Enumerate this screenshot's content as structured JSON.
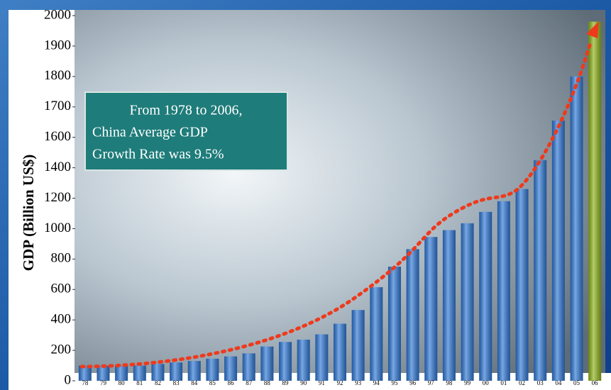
{
  "chart_data": {
    "type": "bar",
    "y_label": "GDP (Billion US$)",
    "annotation": [
      "From 1978 to 2006,",
      "China Average GDP",
      "Growth Rate was 9.5%"
    ],
    "categories": [
      "78",
      "79",
      "80",
      "81",
      "82",
      "83",
      "84",
      "85",
      "86",
      "87",
      "88",
      "89",
      "90",
      "91",
      "92",
      "93",
      "94",
      "95",
      "96",
      "97",
      "98",
      "99",
      "00",
      "01",
      "02",
      "03",
      "04",
      "05",
      "06"
    ],
    "values": [
      100,
      100,
      100,
      100,
      110,
      120,
      130,
      145,
      160,
      180,
      225,
      255,
      270,
      305,
      375,
      465,
      615,
      750,
      865,
      945,
      990,
      1035,
      1110,
      1180,
      1260,
      1450,
      1655,
      1800,
      1980
    ],
    "bar_colors": [
      "#2f78d6",
      "#2f78d6",
      "#2f78d6",
      "#2f78d6",
      "#2f78d6",
      "#2f78d6",
      "#2f78d6",
      "#2f78d6",
      "#2f78d6",
      "#2f78d6",
      "#2f78d6",
      "#2f78d6",
      "#2f78d6",
      "#2f78d6",
      "#2f78d6",
      "#2f78d6",
      "#2f78d6",
      "#2f78d6",
      "#2f78d6",
      "#2f78d6",
      "#2f78d6",
      "#2f78d6",
      "#2f78d6",
      "#2f78d6",
      "#2f78d6",
      "#2f78d6",
      "#2f78d6",
      "#2f78d6",
      "#8fb31a"
    ],
    "ylim": [
      0,
      2000
    ],
    "yticks": [
      0,
      200,
      400,
      600,
      800,
      1000,
      1200,
      1400,
      1600,
      1700,
      1800,
      1900,
      2000
    ]
  }
}
